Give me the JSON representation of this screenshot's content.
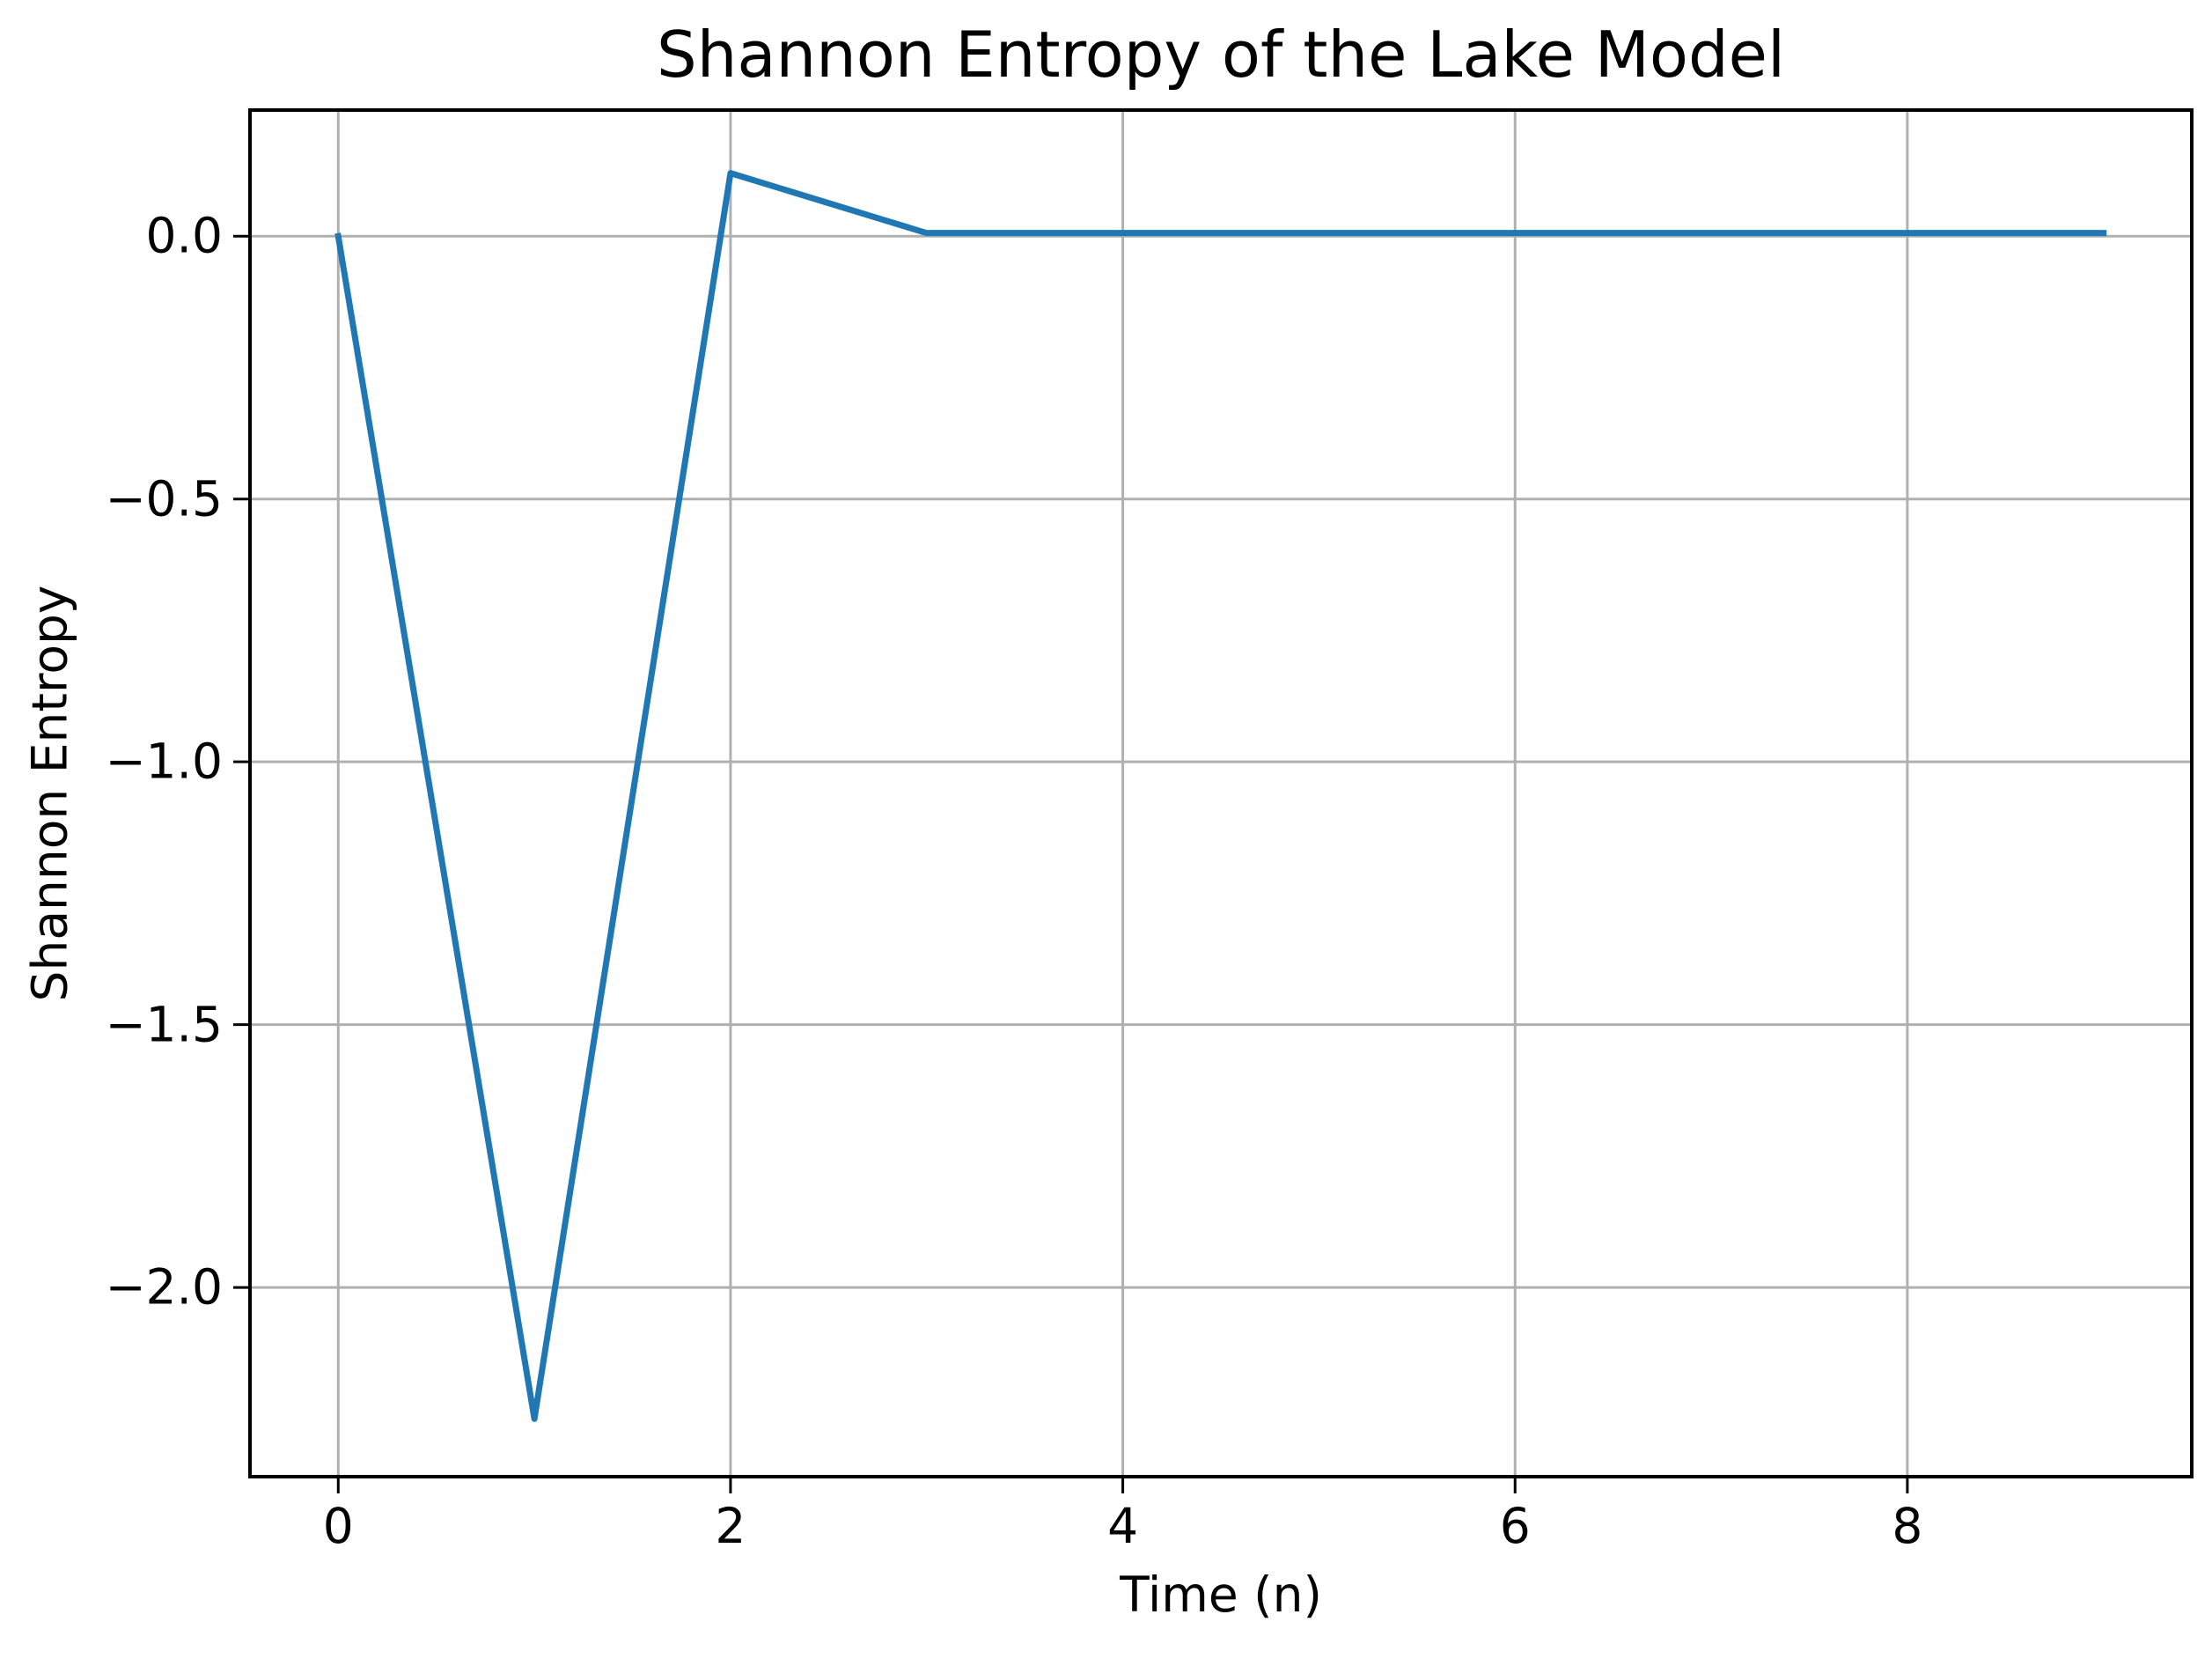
{
  "chart_data": {
    "type": "line",
    "title": "Shannon Entropy of the Lake Model",
    "xlabel": "Time (n)",
    "ylabel": "Shannon Entropy",
    "x": [
      0,
      1,
      2,
      3,
      4,
      5,
      6,
      7,
      8,
      9
    ],
    "series": [
      {
        "name": "Shannon entropy",
        "values": [
          0.0,
          -2.25,
          0.12,
          0.006,
          0.006,
          0.006,
          0.006,
          0.006,
          0.006,
          0.006
        ]
      }
    ],
    "x_ticks": [
      0,
      2,
      4,
      6,
      8
    ],
    "x_tick_labels": [
      "0",
      "2",
      "4",
      "6",
      "8"
    ],
    "y_ticks": [
      0.0,
      -0.5,
      -1.0,
      -1.5,
      -2.0
    ],
    "y_tick_labels": [
      "0.0",
      "−0.5",
      "−1.0",
      "−1.5",
      "−2.0"
    ],
    "xlim": [
      -0.45,
      9.45
    ],
    "ylim": [
      -2.36,
      0.24
    ],
    "grid": true,
    "legend_position": "none",
    "colors": {
      "line": "#1f77b4",
      "grid": "#b0b0b0",
      "spine": "#000000",
      "text": "#000000",
      "background": "#ffffff"
    }
  }
}
